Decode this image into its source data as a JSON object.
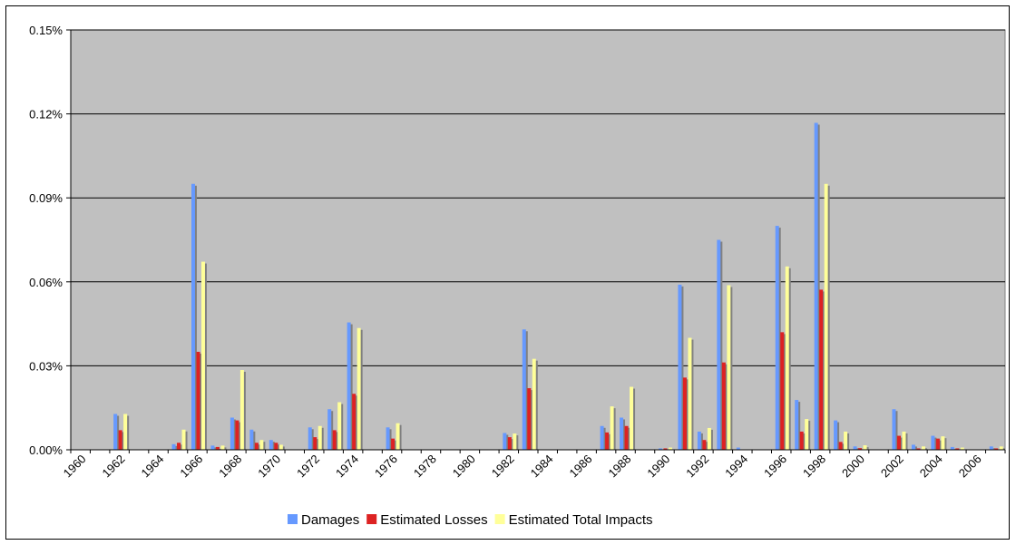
{
  "chart_data": {
    "type": "bar",
    "title": "",
    "xlabel": "",
    "ylabel": "",
    "ylim": [
      0,
      0.15
    ],
    "y_ticks": [
      "0.00%",
      "0.03%",
      "0.06%",
      "0.09%",
      "0.12%",
      "0.15%"
    ],
    "y_tick_values": [
      0,
      0.03,
      0.06,
      0.09,
      0.12,
      0.15
    ],
    "x_tick_labels": [
      "1960",
      "1962",
      "1964",
      "1966",
      "1968",
      "1970",
      "1972",
      "1974",
      "1976",
      "1978",
      "1980",
      "1982",
      "1984",
      "1986",
      "1988",
      "1990",
      "1992",
      "1994",
      "1996",
      "1998",
      "2000",
      "2002",
      "2004",
      "2006"
    ],
    "categories": [
      "1960",
      "1961",
      "1962",
      "1963",
      "1964",
      "1965",
      "1966",
      "1967",
      "1968",
      "1969",
      "1970",
      "1971",
      "1972",
      "1973",
      "1974",
      "1975",
      "1976",
      "1977",
      "1978",
      "1979",
      "1980",
      "1981",
      "1982",
      "1983",
      "1984",
      "1985",
      "1986",
      "1987",
      "1988",
      "1989",
      "1990",
      "1991",
      "1992",
      "1993",
      "1994",
      "1995",
      "1996",
      "1997",
      "1998",
      "1999",
      "2000",
      "2001",
      "2002",
      "2003",
      "2004",
      "2005",
      "2006",
      "2007"
    ],
    "grid": true,
    "legend_position": "bottom",
    "background": "#c0c0c0",
    "series": [
      {
        "name": "Damages",
        "color": "#6699ff",
        "values": [
          0,
          0,
          0.0128,
          0,
          0,
          0.002,
          0.095,
          0.0015,
          0.0115,
          0.0072,
          0.0035,
          0,
          0.008,
          0.0145,
          0.0455,
          0.0,
          0.008,
          0,
          0,
          0,
          0,
          0,
          0.006,
          0.043,
          0,
          0,
          0,
          0.0085,
          0.0115,
          0,
          0.0005,
          0.059,
          0.0065,
          0.075,
          0.0008,
          0,
          0.08,
          0.0178,
          0.1168,
          0.0105,
          0.0012,
          0,
          0.0145,
          0.0018,
          0.005,
          0.001,
          0,
          0.0012
        ]
      },
      {
        "name": "Estimated Losses",
        "color": "#dd2222",
        "values": [
          0,
          0,
          0.007,
          0,
          0,
          0.0025,
          0.035,
          0.001,
          0.0105,
          0.0025,
          0.0025,
          0,
          0.0045,
          0.007,
          0.02,
          0,
          0.004,
          0,
          0,
          0,
          0,
          0,
          0.0045,
          0.022,
          0,
          0,
          0,
          0.0062,
          0.0085,
          0,
          0.0005,
          0.0258,
          0.0035,
          0.0312,
          0,
          0,
          0.042,
          0.0065,
          0.0572,
          0.0028,
          0.0006,
          0,
          0.005,
          0.0005,
          0.004,
          0.0005,
          0,
          0.0005
        ]
      },
      {
        "name": "Estimated Total Impacts",
        "color": "#ffff99",
        "values": [
          0,
          0,
          0.0128,
          0,
          0,
          0.0072,
          0.0672,
          0.0015,
          0.0285,
          0.0035,
          0.0018,
          0,
          0.0085,
          0.017,
          0.0435,
          0,
          0.0095,
          0,
          0,
          0,
          0,
          0,
          0.0058,
          0.0325,
          0,
          0,
          0,
          0.0155,
          0.0225,
          0,
          0.0008,
          0.04,
          0.0078,
          0.0588,
          0,
          0,
          0.0655,
          0.011,
          0.095,
          0.0065,
          0.0016,
          0,
          0.0065,
          0.0012,
          0.0048,
          0.0008,
          0,
          0.0012
        ]
      }
    ],
    "shadow_color": "#808080"
  }
}
